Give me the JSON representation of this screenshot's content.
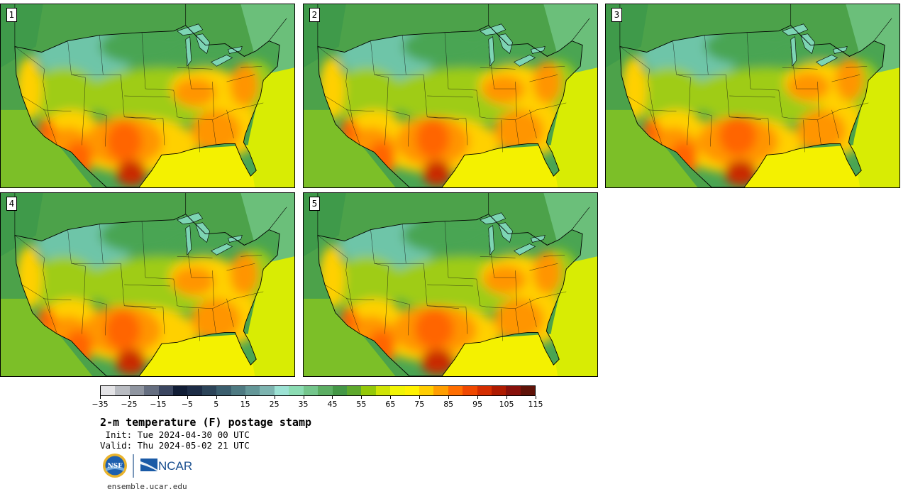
{
  "figure": {
    "title": "2-m temperature (F) postage stamp",
    "init": " Init: Tue 2024-04-30 00 UTC",
    "valid": "Valid: Thu 2024-05-02 21 UTC",
    "website": "ensemble.ucar.edu",
    "logo_text": "NCAR",
    "nsf_text": "NSF"
  },
  "panels": [
    {
      "label": "1"
    },
    {
      "label": "2"
    },
    {
      "label": "3"
    },
    {
      "label": "4"
    },
    {
      "label": "5"
    }
  ],
  "colorbar": {
    "unit": "F",
    "min": -35,
    "max": 120,
    "step": 5,
    "tick_labels": [
      "−35",
      "−25",
      "−15",
      "−5",
      "5",
      "15",
      "25",
      "35",
      "45",
      "55",
      "65",
      "75",
      "85",
      "95",
      "105",
      "115"
    ],
    "colors": [
      "#e3e3e6",
      "#b9bcc2",
      "#8f95a0",
      "#656e80",
      "#3b4660",
      "#111d36",
      "#1d2c46",
      "#2c4459",
      "#3b5e6e",
      "#4e7a82",
      "#649798",
      "#7db4b0",
      "#9ce2d4",
      "#8bdcb3",
      "#74c68c",
      "#5cae63",
      "#449746",
      "#5ea92c",
      "#94c909",
      "#cfe405",
      "#f1f404",
      "#fff200",
      "#ffcd00",
      "#ff9e00",
      "#ff6e00",
      "#f04800",
      "#d42d00",
      "#ae1a00",
      "#87100a",
      "#5f1208"
    ]
  },
  "map_colors": {
    "ocean_gulf": "#f4f100",
    "ocean_atlantic_south": "#d8ec04",
    "ocean_north": "#6bbf7a",
    "ocean_pacific": "#4ca24a",
    "land_cold": "#6ec5a8",
    "land_cool": "#4aa552",
    "land_mild": "#9fcc18",
    "land_warm": "#ffd000",
    "land_hot": "#ff9500",
    "land_very_hot": "#ff6500",
    "land_extreme": "#c92900",
    "lakes": "#7dd5b4"
  }
}
